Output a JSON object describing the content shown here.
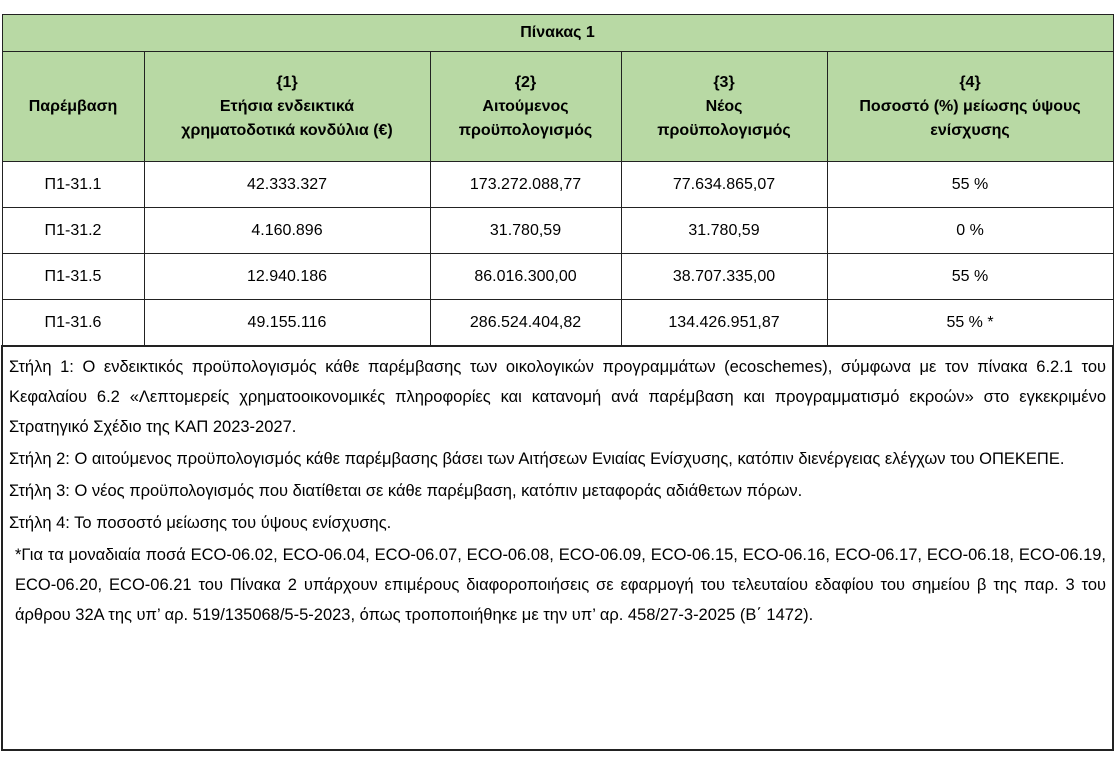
{
  "table": {
    "title": "Πίνακας 1",
    "headers": [
      {
        "num": "",
        "label": "Παρέμβαση"
      },
      {
        "num": "{1}",
        "label": "Ετήσια ενδεικτικά χρηματοδοτικά κονδύλια (€)"
      },
      {
        "num": "{2}",
        "label": "Αιτούμενος προϋπολογισμός"
      },
      {
        "num": "{3}",
        "label": "Νέος προϋπολογισμός"
      },
      {
        "num": "{4}",
        "label": "Ποσοστό (%) μείωσης ύψους ενίσχυσης"
      }
    ],
    "rows": [
      [
        "Π1-31.1",
        "42.333.327",
        "173.272.088,77",
        "77.634.865,07",
        "55 %"
      ],
      [
        "Π1-31.2",
        "4.160.896",
        "31.780,59",
        "31.780,59",
        "0 %"
      ],
      [
        "Π1-31.5",
        "12.940.186",
        "86.016.300,00",
        "38.707.335,00",
        "55 %"
      ],
      [
        "Π1-31.6",
        "49.155.116",
        "286.524.404,82",
        "134.426.951,87",
        "55 % *"
      ]
    ],
    "notes": [
      "Στήλη 1: Ο ενδεικτικός προϋπολογισμός κάθε παρέμβασης των οικολογικών προγραμμάτων (ecoschemes), σύμφωνα με τον πίνακα 6.2.1 του Κεφαλαίου 6.2 «Λεπτομερείς χρηματοοικονομικές πληροφορίες και κατανομή ανά παρέμβαση και προγραμματισμό εκροών» στο εγκεκριμένο Στρατηγικό Σχέδιο της ΚΑΠ 2023-2027.",
      "Στήλη 2: Ο αιτούμενος προϋπολογισμός κάθε παρέμβασης βάσει των Αιτήσεων Ενιαίας Ενίσχυσης, κατόπιν διενέργειας ελέγχων του ΟΠΕΚΕΠΕ.",
      "Στήλη 3: Ο νέος προϋπολογισμός που διατίθεται σε κάθε παρέμβαση, κατόπιν μεταφοράς αδιάθετων πόρων.",
      "Στήλη 4: Το ποσοστό μείωσης του ύψους ενίσχυσης.",
      "*Για τα μοναδιαία ποσά ECO-06.02, ECO-06.04, ECO-06.07, ECO-06.08, ECO-06.09, ECO-06.15, ECO-06.16, ECO-06.17, ECO-06.18, ECO-06.19, ECO-06.20, ECO-06.21 του Πίνακα 2 υπάρχουν επιμέρους διαφοροποιήσεις σε εφαρμογή του τελευταίου εδαφίου του σημείου β της παρ. 3 του άρθρου 32Α της υπ’ αρ. 519/135068/5-5-2023, όπως τροποποιήθηκε με την υπ’ αρ. 458/27-3-2025 (Β΄ 1472)."
    ],
    "header_color": "#b8d9a4"
  }
}
